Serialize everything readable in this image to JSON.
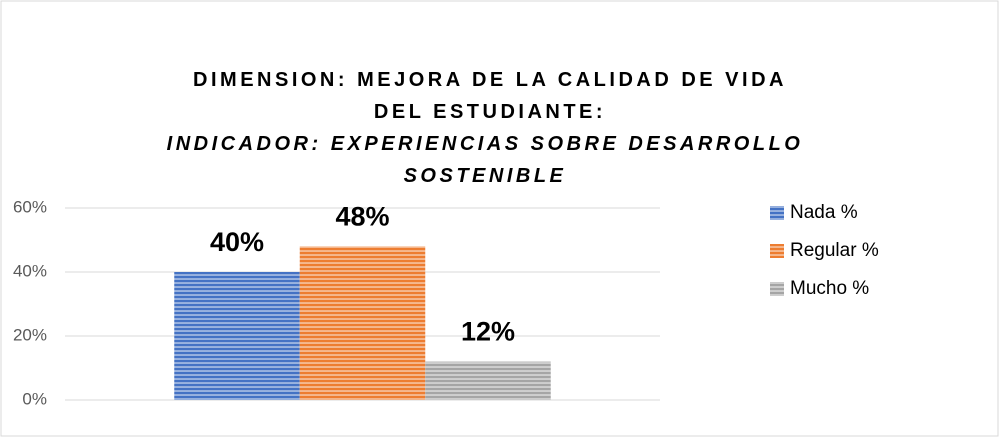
{
  "chart_data": {
    "type": "bar",
    "title": "DIMENSION: MEJORA DE LA CALIDAD DE VIDA DEL ESTUDIANTE:",
    "subtitle": "INDICADOR: EXPERIENCIAS  SOBRE DESARROLLO SOSTENIBLE",
    "categories": [
      null
    ],
    "series": [
      {
        "name": "Nada %",
        "color": "#4472c4",
        "values": [
          40
        ],
        "value_labels": [
          "40%"
        ]
      },
      {
        "name": "Regular %",
        "color": "#ed7d31",
        "values": [
          48
        ],
        "value_labels": [
          "48%"
        ]
      },
      {
        "name": "Mucho %",
        "color": "#a5a5a5",
        "values": [
          12
        ],
        "value_labels": [
          "12%"
        ]
      }
    ],
    "ylim": [
      0,
      60
    ],
    "yticks": [
      {
        "value": 0,
        "label": "0%"
      },
      {
        "value": 20,
        "label": "20%"
      },
      {
        "value": 40,
        "label": "40%"
      },
      {
        "value": 60,
        "label": "60%"
      }
    ],
    "grid": true,
    "legend": "right"
  }
}
